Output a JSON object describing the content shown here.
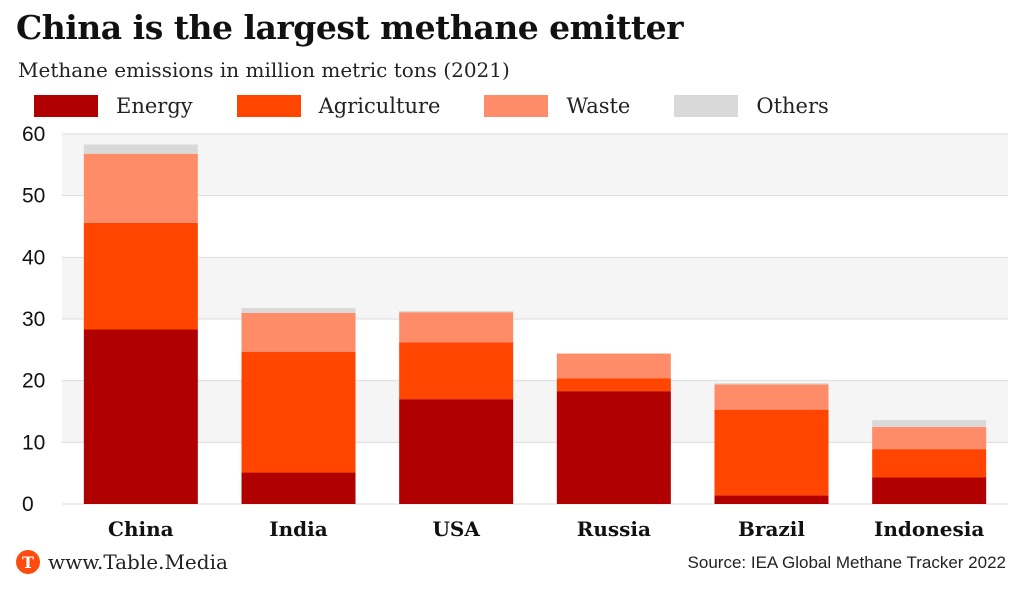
{
  "title": "China is the largest methane emitter",
  "subtitle": "Methane emissions in million metric tons (2021)",
  "source": "Source: IEA Global Methane Tracker 2022",
  "brand": {
    "logo_letter": "T",
    "text": "www.Table.Media",
    "color": "#ff4a10"
  },
  "legend": [
    {
      "label": "Energy",
      "color": "#b00000"
    },
    {
      "label": "Agriculture",
      "color": "#ff4500"
    },
    {
      "label": "Waste",
      "color": "#ff8c69"
    },
    {
      "label": "Others",
      "color": "#d9d9d9"
    }
  ],
  "chart_data": {
    "type": "bar",
    "stacked": true,
    "categories": [
      "China",
      "India",
      "USA",
      "Russia",
      "Brazil",
      "Indonesia"
    ],
    "series": [
      {
        "name": "Energy",
        "color": "#b00000",
        "values": [
          28.3,
          5.1,
          17.0,
          18.3,
          1.4,
          4.3
        ]
      },
      {
        "name": "Agriculture",
        "color": "#ff4500",
        "values": [
          17.3,
          19.6,
          9.2,
          2.1,
          13.9,
          4.6
        ]
      },
      {
        "name": "Waste",
        "color": "#ff8c69",
        "values": [
          11.2,
          6.3,
          4.9,
          4.0,
          4.1,
          3.6
        ]
      },
      {
        "name": "Others",
        "color": "#d9d9d9",
        "values": [
          1.5,
          0.8,
          0.2,
          0.0,
          0.2,
          1.1
        ]
      }
    ],
    "yticks": [
      0,
      10,
      20,
      30,
      40,
      50,
      60
    ],
    "ylim": [
      0,
      60
    ],
    "grid": true,
    "legend_position": "top"
  }
}
